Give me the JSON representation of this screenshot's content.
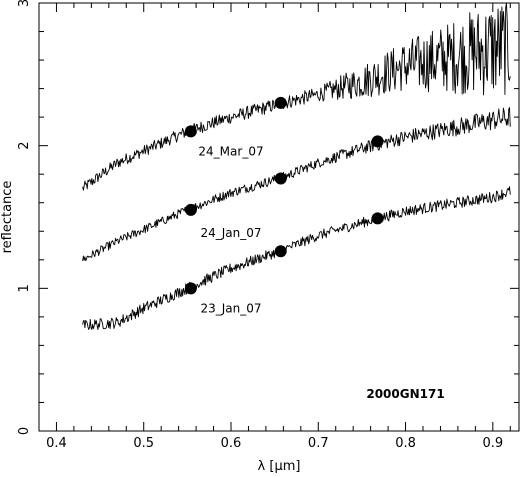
{
  "chart_data": {
    "type": "line",
    "xlabel": "λ [μm]",
    "ylabel": "reflectance",
    "xlim": [
      0.38,
      0.93
    ],
    "ylim": [
      0,
      3
    ],
    "x_ticks": [
      "0.4",
      "0.5",
      "0.6",
      "0.7",
      "0.8",
      "0.9"
    ],
    "y_ticks": [
      "0",
      "1",
      "2",
      "3"
    ],
    "object_label": "2000GN171",
    "colors": {
      "line": "#000000",
      "background": "#ffffff"
    },
    "series": [
      {
        "name": "24_Mar_07",
        "x_range": [
          0.43,
          0.92
        ],
        "trend": [
          [
            0.43,
            1.7
          ],
          [
            0.47,
            1.88
          ],
          [
            0.55,
            2.1
          ],
          [
            0.6,
            2.2
          ],
          [
            0.66,
            2.3
          ],
          [
            0.7,
            2.36
          ],
          [
            0.75,
            2.45
          ],
          [
            0.8,
            2.56
          ],
          [
            0.85,
            2.62
          ],
          [
            0.9,
            2.68
          ],
          [
            0.92,
            2.7
          ]
        ],
        "noise": [
          [
            0.43,
            0.04
          ],
          [
            0.5,
            0.04
          ],
          [
            0.7,
            0.05
          ],
          [
            0.75,
            0.12
          ],
          [
            0.8,
            0.18
          ],
          [
            0.85,
            0.25
          ],
          [
            0.9,
            0.35
          ],
          [
            0.92,
            0.35
          ]
        ],
        "points": [
          [
            0.554,
            2.1
          ],
          [
            0.657,
            2.3
          ],
          [
            0.768,
            2.03
          ]
        ]
      },
      {
        "name": "24_Jan_07",
        "x_range": [
          0.43,
          0.92
        ],
        "trend": [
          [
            0.43,
            1.2
          ],
          [
            0.47,
            1.33
          ],
          [
            0.55,
            1.55
          ],
          [
            0.6,
            1.67
          ],
          [
            0.66,
            1.78
          ],
          [
            0.7,
            1.88
          ],
          [
            0.75,
            1.98
          ],
          [
            0.8,
            2.06
          ],
          [
            0.85,
            2.12
          ],
          [
            0.9,
            2.18
          ],
          [
            0.92,
            2.2
          ]
        ],
        "noise": [
          [
            0.43,
            0.03
          ],
          [
            0.7,
            0.035
          ],
          [
            0.85,
            0.06
          ],
          [
            0.92,
            0.08
          ]
        ],
        "points": [
          [
            0.554,
            1.55
          ],
          [
            0.657,
            1.77
          ],
          [
            0.768,
            1.49
          ]
        ]
      },
      {
        "name": "23_Jan_07",
        "x_range": [
          0.43,
          0.92
        ],
        "trend": [
          [
            0.43,
            0.74
          ],
          [
            0.47,
            0.76
          ],
          [
            0.5,
            0.86
          ],
          [
            0.55,
            1.0
          ],
          [
            0.6,
            1.14
          ],
          [
            0.66,
            1.27
          ],
          [
            0.7,
            1.37
          ],
          [
            0.75,
            1.46
          ],
          [
            0.8,
            1.54
          ],
          [
            0.85,
            1.59
          ],
          [
            0.9,
            1.64
          ],
          [
            0.92,
            1.68
          ]
        ],
        "noise": [
          [
            0.43,
            0.04
          ],
          [
            0.55,
            0.04
          ],
          [
            0.7,
            0.035
          ],
          [
            0.9,
            0.04
          ],
          [
            0.92,
            0.04
          ]
        ],
        "points": [
          [
            0.554,
            1.0
          ],
          [
            0.657,
            1.26
          ]
        ]
      }
    ],
    "annotations": [
      {
        "text": "24_Mar_07",
        "x": 0.6,
        "y": 1.93
      },
      {
        "text": "24_Jan_07",
        "x": 0.6,
        "y": 1.36
      },
      {
        "text": "23_Jan_07",
        "x": 0.6,
        "y": 0.83
      },
      {
        "text": "2000GN171",
        "x": 0.8,
        "y": 0.23
      }
    ]
  }
}
